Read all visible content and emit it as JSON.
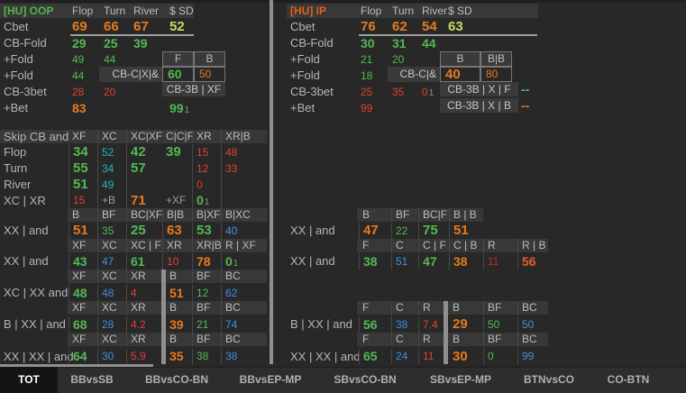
{
  "palette": {
    "g": "#53b953",
    "o": "#e87a1e",
    "r": "#df4034",
    "y": "#ccd95c",
    "b": "#3f8fdf",
    "t": "#2eb5b5",
    "dr": "#b23230",
    "or": "#e85f28",
    "gy": "#9d9d9d"
  },
  "top_left": {
    "title": "[HU] OOP",
    "accent": "#4db84d",
    "columns": [
      "Flop",
      "Turn",
      "River",
      "$ SD"
    ],
    "rows": [
      {
        "label": "Cbet",
        "cells": [
          [
            "69",
            "o",
            "B"
          ],
          [
            "66",
            "o",
            "B"
          ],
          [
            "67",
            "o",
            "B"
          ],
          [
            "52",
            "y",
            "B"
          ]
        ]
      },
      {
        "label": "CB-Fold",
        "cells": [
          [
            "29",
            "g",
            "b"
          ],
          [
            "25",
            "g",
            "b"
          ],
          [
            "39",
            "g",
            "b"
          ]
        ]
      },
      {
        "label": "+Fold",
        "cells": [
          [
            "49",
            "g",
            "n"
          ],
          [
            "44",
            "g",
            "n"
          ]
        ]
      },
      {
        "label": "+Fold",
        "cells": [
          [
            "44",
            "g",
            "n"
          ]
        ]
      },
      {
        "label": "CB-3bet",
        "cells": [
          [
            "28",
            "r",
            "n"
          ],
          [
            "20",
            "r",
            "n"
          ]
        ]
      },
      {
        "label": "+Bet",
        "cells": [
          [
            "83",
            "o",
            "b"
          ],
          null,
          null,
          [
            "99",
            "g",
            "b",
            "1"
          ]
        ]
      }
    ],
    "box": {
      "label": "CB-C|X|&",
      "headers": [
        "F",
        "B"
      ],
      "values": [
        [
          "60",
          "g",
          "b"
        ],
        [
          "50",
          "o",
          "n"
        ]
      ],
      "strips": [
        {
          "text": "CB-3B | XF",
          "value": null
        }
      ]
    }
  },
  "top_right": {
    "title": "[HU] IP",
    "accent": "#e8601c",
    "columns": [
      "Flop",
      "Turn",
      "River",
      "$ SD"
    ],
    "rows": [
      {
        "label": "Cbet",
        "cells": [
          [
            "76",
            "o",
            "B"
          ],
          [
            "62",
            "o",
            "B"
          ],
          [
            "54",
            "o",
            "B"
          ],
          [
            "63",
            "y",
            "B"
          ]
        ]
      },
      {
        "label": "CB-Fold",
        "cells": [
          [
            "30",
            "g",
            "b"
          ],
          [
            "31",
            "g",
            "b"
          ],
          [
            "44",
            "g",
            "b"
          ]
        ]
      },
      {
        "label": "+Fold",
        "cells": [
          [
            "21",
            "g",
            "n"
          ],
          [
            "20",
            "g",
            "n"
          ]
        ]
      },
      {
        "label": "+Fold",
        "cells": [
          [
            "18",
            "g",
            "n"
          ]
        ]
      },
      {
        "label": "CB-3bet",
        "cells": [
          [
            "25",
            "r",
            "n"
          ],
          [
            "35",
            "r",
            "n"
          ],
          [
            "0",
            "r",
            "n",
            "1"
          ]
        ]
      },
      {
        "label": "+Bet",
        "cells": [
          [
            "99",
            "r",
            "n"
          ]
        ]
      }
    ],
    "box": {
      "label": "CB-C|&",
      "headers": [
        "B",
        "B|B"
      ],
      "values": [
        [
          "40",
          "o",
          "B"
        ],
        [
          "80",
          "o",
          "n"
        ]
      ],
      "strips": [
        {
          "text": "CB-3B | X | F",
          "value": [
            "--",
            "g",
            "b"
          ]
        },
        {
          "text": "CB-3B | X | B",
          "value": [
            "--",
            "o",
            "b"
          ]
        }
      ]
    }
  },
  "mid_left": {
    "rows": [
      {
        "h": true,
        "label": "Skip CB and",
        "cells": [
          "XF",
          "XC",
          "XC|XF",
          "C|C|F",
          "XR",
          "XR|B"
        ],
        "g": "skip"
      },
      {
        "label": "Flop",
        "cells": [
          [
            "34",
            "g",
            "B"
          ],
          [
            "52",
            "t",
            "n"
          ],
          [
            "42",
            "g",
            "B"
          ],
          [
            "39",
            "g",
            "B"
          ],
          [
            "15",
            "r",
            "n"
          ],
          [
            "48",
            "r",
            "n"
          ]
        ],
        "g": "skip"
      },
      {
        "label": "Turn",
        "cells": [
          [
            "55",
            "g",
            "B"
          ],
          [
            "34",
            "t",
            "n"
          ],
          [
            "57",
            "g",
            "B"
          ],
          null,
          [
            "12",
            "r",
            "n"
          ],
          [
            "33",
            "r",
            "n"
          ]
        ],
        "g": "skip"
      },
      {
        "label": "River",
        "cells": [
          [
            "51",
            "g",
            "B"
          ],
          [
            "49",
            "t",
            "n"
          ],
          null,
          null,
          [
            "0",
            "r",
            "n"
          ],
          null
        ],
        "g": "skip"
      },
      {
        "label": "XC | XR",
        "cells": [
          [
            "15",
            "r",
            "n"
          ],
          [
            "+B",
            "gy",
            "n"
          ],
          [
            "71",
            "o",
            "B"
          ],
          [
            "+XF",
            "gy",
            "n"
          ],
          [
            "0",
            "g",
            "b",
            "1"
          ],
          null
        ],
        "g": "skip"
      },
      {
        "h": true,
        "cells": [
          "B",
          "BF",
          "BC|XF",
          "B|B",
          "B|XF",
          "B|XC"
        ]
      },
      {
        "label": "XX | and",
        "cells": [
          [
            "51",
            "o",
            "B"
          ],
          [
            "35",
            "g",
            "n"
          ],
          [
            "25",
            "g",
            "B"
          ],
          [
            "63",
            "o",
            "B"
          ],
          [
            "53",
            "g",
            "B"
          ],
          [
            "40",
            "b",
            "n"
          ]
        ]
      },
      {
        "h": true,
        "cells": [
          "XF",
          "XC",
          "XC | F",
          "XR",
          "XR|B",
          "R | XF"
        ]
      },
      {
        "label": "XX | and",
        "cells": [
          [
            "43",
            "g",
            "b"
          ],
          [
            "47",
            "b",
            "n"
          ],
          [
            "61",
            "g",
            "b"
          ],
          [
            "10",
            "r",
            "n"
          ],
          [
            "78",
            "o",
            "b"
          ],
          [
            "0",
            "g",
            "b",
            "1"
          ]
        ]
      },
      {
        "h": true,
        "cells": [
          "XF",
          "XC",
          "XR",
          "B",
          "BF",
          "BC"
        ],
        "g": "div"
      },
      {
        "label": "XC | XX and",
        "cells": [
          [
            "48",
            "g",
            "b"
          ],
          [
            "48",
            "b",
            "n"
          ],
          [
            "4",
            "r",
            "n"
          ],
          [
            "51",
            "o",
            "b"
          ],
          [
            "12",
            "g",
            "n"
          ],
          [
            "62",
            "b",
            "n"
          ]
        ],
        "g": "div"
      },
      {
        "h": true,
        "cells": [
          "XF",
          "XC",
          "XR",
          "B",
          "BF",
          "BC"
        ],
        "g": "div"
      },
      {
        "label": "B | XX | and",
        "cells": [
          [
            "68",
            "g",
            "b"
          ],
          [
            "28",
            "b",
            "n"
          ],
          [
            "4.2",
            "r",
            "n"
          ],
          [
            "39",
            "o",
            "b"
          ],
          [
            "21",
            "g",
            "n"
          ],
          [
            "74",
            "b",
            "n"
          ]
        ],
        "g": "div"
      },
      {
        "h": true,
        "cells": [
          "XF",
          "XC",
          "XR",
          "B",
          "BF",
          "BC"
        ],
        "g": "div"
      },
      {
        "label": "XX | XX | and",
        "cells": [
          [
            "64",
            "g",
            "b"
          ],
          [
            "30",
            "b",
            "n"
          ],
          [
            "5.9",
            "r",
            "n"
          ],
          [
            "35",
            "o",
            "b"
          ],
          [
            "38",
            "g",
            "n"
          ],
          [
            "38",
            "b",
            "n"
          ]
        ],
        "g": "div"
      }
    ]
  },
  "mid_right": {
    "rows": [
      {
        "h": true,
        "cells": [
          "B",
          "BF",
          "BC|F",
          "B | B"
        ],
        "short": true
      },
      {
        "label": "XX | and",
        "cells": [
          [
            "47",
            "o",
            "B"
          ],
          [
            "22",
            "g",
            "n"
          ],
          [
            "75",
            "g",
            "B"
          ],
          [
            "51",
            "o",
            "B"
          ]
        ]
      },
      {
        "h": true,
        "cells": [
          "F",
          "C",
          "C | F",
          "C | B",
          "R",
          "R | B"
        ]
      },
      {
        "label": "XX | and",
        "cells": [
          [
            "38",
            "g",
            "b"
          ],
          [
            "51",
            "b",
            "n"
          ],
          [
            "47",
            "g",
            "b"
          ],
          [
            "38",
            "o",
            "b"
          ],
          [
            "11",
            "dr",
            "n"
          ],
          [
            "56",
            "or",
            "b"
          ]
        ]
      },
      {
        "h": true,
        "cells": [
          "F",
          "C",
          "R",
          "B",
          "BF",
          "BC"
        ],
        "g": "div"
      },
      {
        "label": "B | XX | and",
        "cells": [
          [
            "56",
            "g",
            "b"
          ],
          [
            "38",
            "b",
            "n"
          ],
          [
            "7.4",
            "r",
            "n"
          ],
          [
            "29",
            "o",
            "B"
          ],
          [
            "50",
            "g",
            "n"
          ],
          [
            "50",
            "b",
            "n"
          ]
        ],
        "g": "div"
      },
      {
        "h": true,
        "cells": [
          "F",
          "C",
          "R",
          "B",
          "BF",
          "BC"
        ],
        "g": "div"
      },
      {
        "label": "XX | XX | and",
        "cells": [
          [
            "65",
            "g",
            "b"
          ],
          [
            "24",
            "b",
            "n"
          ],
          [
            "11",
            "r",
            "n"
          ],
          [
            "30",
            "o",
            "B"
          ],
          [
            "0",
            "g",
            "n"
          ],
          [
            "99",
            "b",
            "n"
          ]
        ],
        "g": "div"
      }
    ]
  },
  "tabs": {
    "active": "TOT",
    "items": [
      "TOT",
      "BBvsSB",
      "BBvsCO-BN",
      "BBvsEP-MP",
      "SBvsCO-BN",
      "SBvsEP-MP",
      "BTNvsCO",
      "CO-BTN"
    ]
  }
}
